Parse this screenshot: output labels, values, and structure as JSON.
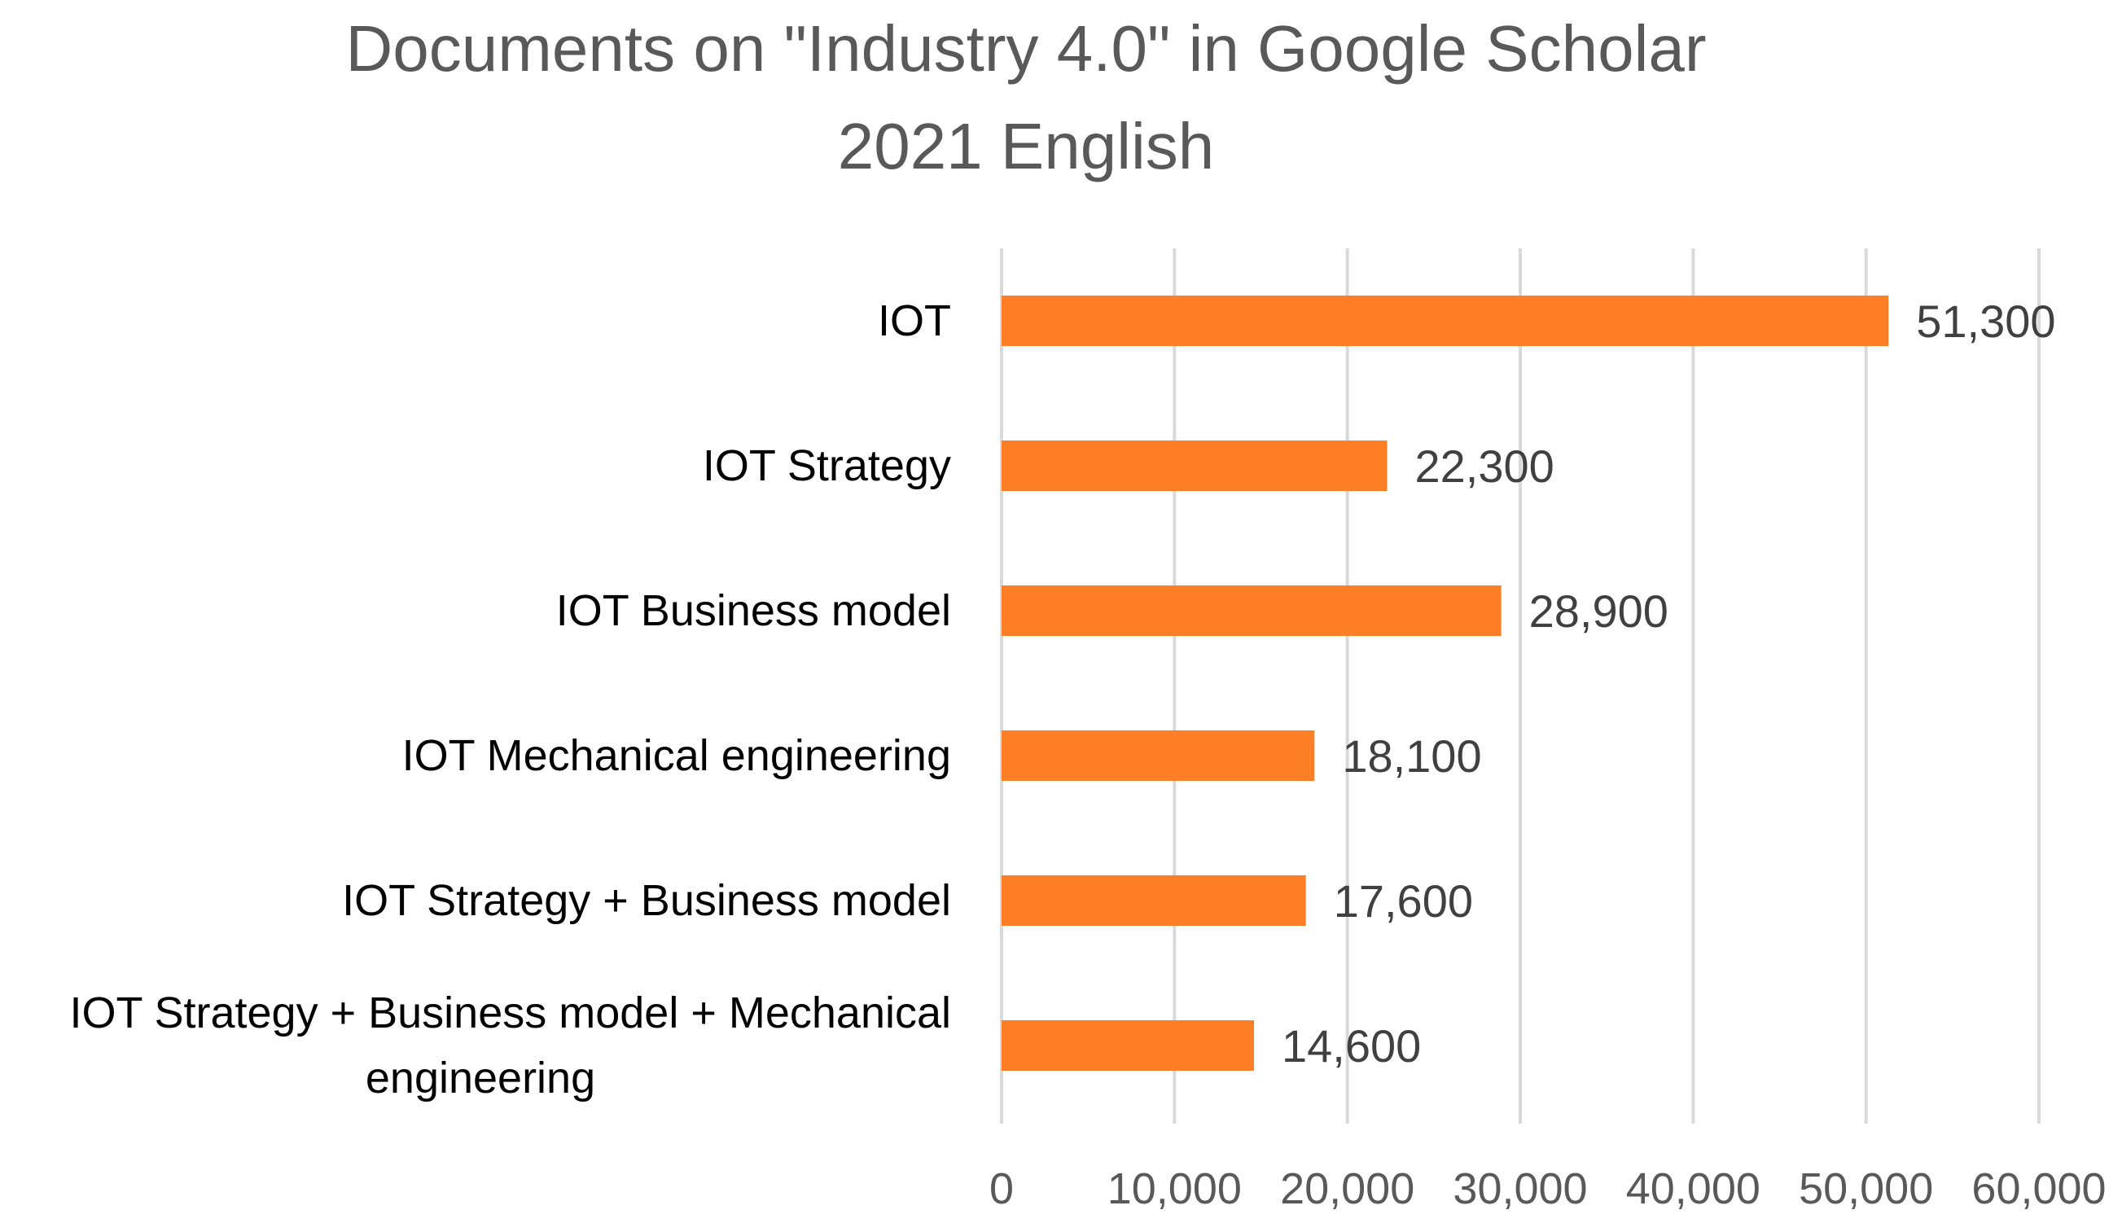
{
  "chart_data": {
    "type": "bar",
    "orientation": "horizontal",
    "title": "Documents on \"Industry 4.0\" in Google Scholar",
    "subtitle": "2021 English",
    "categories": [
      "IOT",
      "IOT Strategy",
      "IOT Business model",
      "IOT Mechanical engineering",
      "IOT Strategy + Business model",
      "IOT Strategy + Business model + Mechanical engineering"
    ],
    "category_label_lines": [
      [
        "IOT"
      ],
      [
        "IOT Strategy"
      ],
      [
        "IOT Business model"
      ],
      [
        "IOT Mechanical engineering"
      ],
      [
        "IOT Strategy + Business model"
      ],
      [
        "IOT Strategy + Business model + Mechanical",
        "engineering"
      ]
    ],
    "values": [
      51300,
      22300,
      28900,
      18100,
      17600,
      14600
    ],
    "data_labels": [
      "51,300",
      "22,300",
      "28,900",
      "18,100",
      "17,600",
      "14,600"
    ],
    "xlabel": "",
    "ylabel": "",
    "xlim": [
      0,
      60000
    ],
    "xticks": [
      0,
      10000,
      20000,
      30000,
      40000,
      50000,
      60000
    ],
    "xtick_labels": [
      "0",
      "10,000",
      "20,000",
      "30,000",
      "40,000",
      "50,000",
      "60,000"
    ],
    "grid": true,
    "legend": "none",
    "colors": {
      "bar": "#FF7F27",
      "title": "#595959",
      "text": "#000000",
      "data_label": "#404040",
      "tick_label": "#595959",
      "gridline": "#D9D9D9"
    }
  }
}
